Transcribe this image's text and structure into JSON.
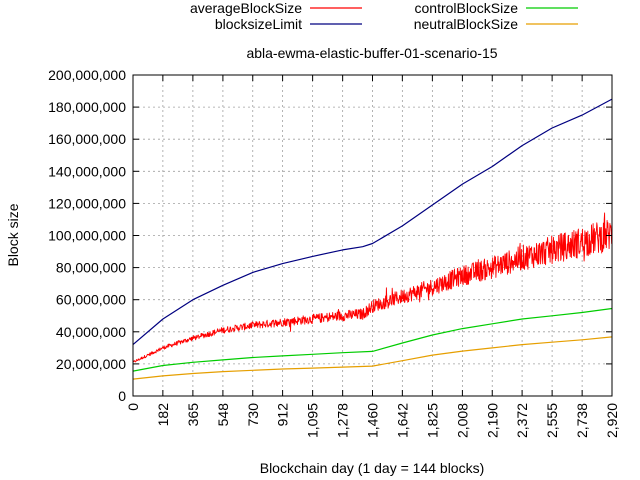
{
  "chart_data": {
    "type": "line",
    "title": "abla-ewma-elastic-buffer-01-scenario-15",
    "xlabel": "Blockchain day (1 day = 144 blocks)",
    "ylabel": "Block size",
    "xlim": [
      0,
      2920
    ],
    "ylim": [
      0,
      200000000
    ],
    "x_ticks": [
      0,
      182,
      365,
      548,
      730,
      912,
      1095,
      1278,
      1460,
      1642,
      1825,
      2008,
      2190,
      2372,
      2555,
      2738,
      2920
    ],
    "x_tick_labels": [
      "0",
      "182",
      "365",
      "548",
      "730",
      "912",
      "1,095",
      "1,278",
      "1,460",
      "1,642",
      "1,825",
      "2,008",
      "2,190",
      "2,372",
      "2,555",
      "2,738",
      "2,920"
    ],
    "y_ticks": [
      0,
      20000000,
      40000000,
      60000000,
      80000000,
      100000000,
      120000000,
      140000000,
      160000000,
      180000000,
      200000000
    ],
    "y_tick_labels": [
      "0",
      "20,000,000",
      "40,000,000",
      "60,000,000",
      "80,000,000",
      "100,000,000",
      "120,000,000",
      "140,000,000",
      "160,000,000",
      "180,000,000",
      "200,000,000"
    ],
    "grid": true,
    "legend_position": "top",
    "series": [
      {
        "name": "averageBlockSize",
        "color": "#ff0000",
        "style": "noisy",
        "x": [
          0,
          182,
          365,
          548,
          730,
          912,
          1095,
          1278,
          1400,
          1460,
          1642,
          1825,
          2008,
          2190,
          2372,
          2555,
          2738,
          2920
        ],
        "values": [
          21000000,
          30000000,
          36000000,
          41000000,
          44000000,
          46000000,
          48000000,
          50000000,
          51000000,
          56000000,
          62000000,
          68000000,
          75000000,
          80000000,
          86000000,
          91000000,
          96000000,
          101000000
        ]
      },
      {
        "name": "blocksizeLimit",
        "color": "#000080",
        "x": [
          0,
          182,
          365,
          548,
          730,
          912,
          1095,
          1278,
          1400,
          1460,
          1642,
          1825,
          2008,
          2190,
          2372,
          2555,
          2738,
          2920
        ],
        "values": [
          32000000,
          48000000,
          60000000,
          69000000,
          77000000,
          82500000,
          87000000,
          91000000,
          93000000,
          95000000,
          106000000,
          119000000,
          132000000,
          143000000,
          156000000,
          167000000,
          175000000,
          185000000
        ]
      },
      {
        "name": "controlBlockSize",
        "color": "#00cc00",
        "x": [
          0,
          182,
          365,
          548,
          730,
          912,
          1095,
          1278,
          1460,
          1642,
          1825,
          2008,
          2190,
          2372,
          2555,
          2738,
          2920
        ],
        "values": [
          15500000,
          19000000,
          21000000,
          22500000,
          24000000,
          25000000,
          26000000,
          27000000,
          27800000,
          33000000,
          38000000,
          42000000,
          45000000,
          48000000,
          50000000,
          52000000,
          54500000
        ]
      },
      {
        "name": "neutralBlockSize",
        "color": "#e69f00",
        "x": [
          0,
          182,
          365,
          548,
          730,
          912,
          1095,
          1278,
          1460,
          1642,
          1825,
          2008,
          2190,
          2372,
          2555,
          2738,
          2920
        ],
        "values": [
          10500000,
          12500000,
          14000000,
          15200000,
          16000000,
          16800000,
          17400000,
          18000000,
          18600000,
          22000000,
          25500000,
          28000000,
          30000000,
          32000000,
          33500000,
          35000000,
          36800000
        ]
      }
    ]
  }
}
